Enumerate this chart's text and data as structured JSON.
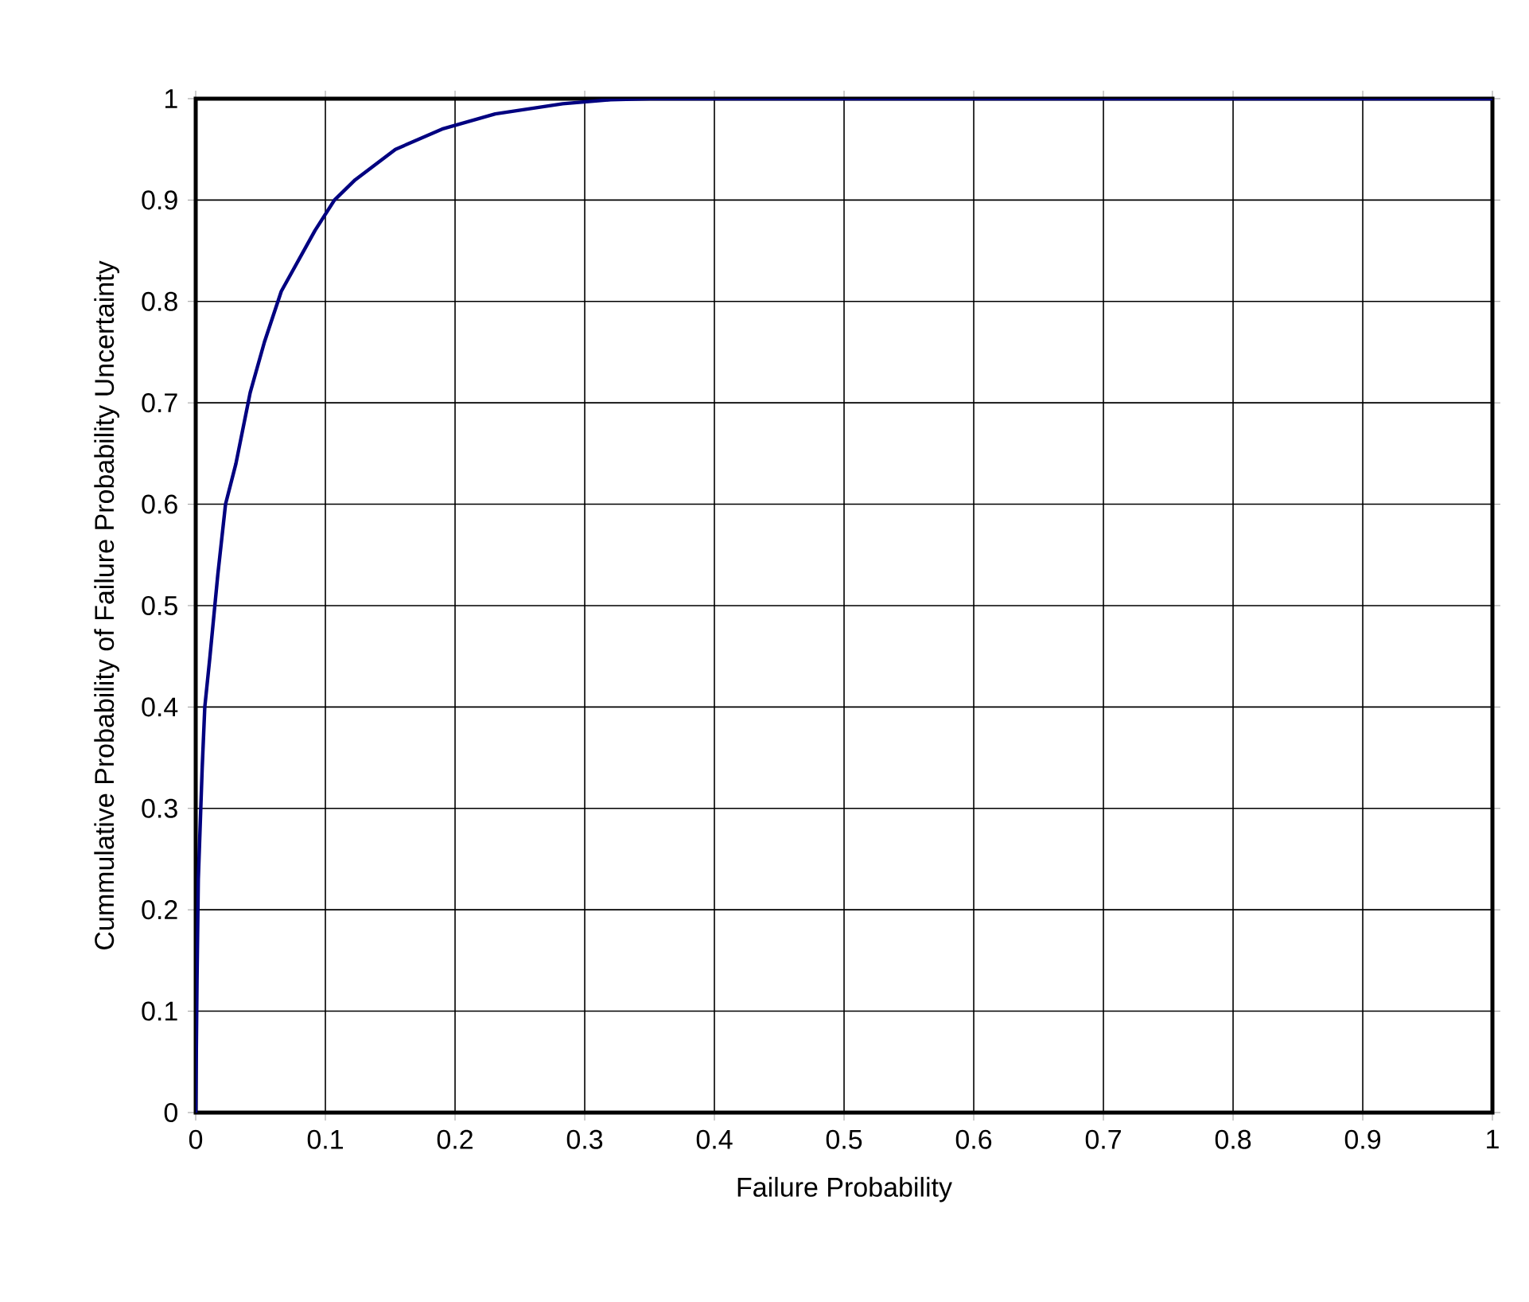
{
  "chart_data": {
    "type": "line",
    "xlabel": "Failure Probability",
    "ylabel": "Cummulative Probability of Failure Probability Uncertainty",
    "xlim": [
      0,
      1
    ],
    "ylim": [
      0,
      1
    ],
    "xticks": [
      0,
      0.1,
      0.2,
      0.3,
      0.4,
      0.5,
      0.6,
      0.7,
      0.8,
      0.9,
      1
    ],
    "yticks": [
      0,
      0.1,
      0.2,
      0.3,
      0.4,
      0.5,
      0.6,
      0.7,
      0.8,
      0.9,
      1
    ],
    "grid": true,
    "marker": "none",
    "line_style": "solid",
    "series": [
      {
        "color": "#000080",
        "x": [
          0,
          0.001,
          0.002,
          0.005,
          0.007,
          0.011,
          0.017,
          0.023,
          0.031,
          0.042,
          0.053,
          0.066,
          0.079,
          0.092,
          0.107,
          0.123,
          0.154,
          0.19,
          0.231,
          0.283,
          0.32,
          0.35,
          0.5,
          0.75,
          1
        ],
        "values": [
          0,
          0.13,
          0.23,
          0.34,
          0.4,
          0.45,
          0.53,
          0.6,
          0.64,
          0.71,
          0.76,
          0.81,
          0.84,
          0.87,
          0.9,
          0.92,
          0.95,
          0.97,
          0.985,
          0.995,
          0.999,
          1,
          1,
          1,
          1
        ]
      }
    ]
  }
}
